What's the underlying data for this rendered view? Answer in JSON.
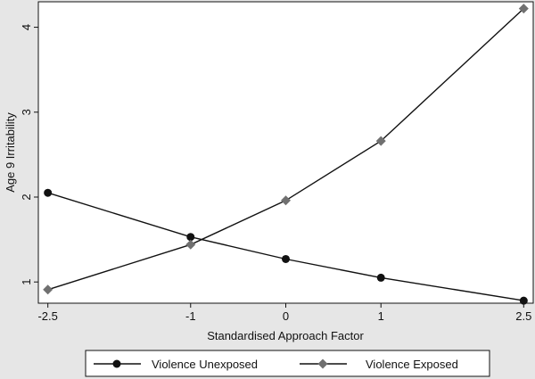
{
  "chart_data": {
    "type": "line",
    "x": [
      -2.5,
      -1,
      0,
      1,
      2.5
    ],
    "xticks": [
      "-2.5",
      "-1",
      "0",
      "1",
      "2.5"
    ],
    "yticks": [
      "1",
      "2",
      "3",
      "4"
    ],
    "xlabel": "Standardised Approach Factor",
    "ylabel": "Age 9 Irritability",
    "xlim": [
      -2.6,
      2.6
    ],
    "ylim": [
      0.75,
      4.3
    ],
    "grid": false,
    "legend_position": "bottom",
    "series": [
      {
        "name": "Violence Unexposed",
        "marker": "circle",
        "values": [
          2.05,
          1.53,
          1.27,
          1.05,
          0.78
        ]
      },
      {
        "name": "Violence Exposed",
        "marker": "diamond",
        "values": [
          0.91,
          1.44,
          1.96,
          2.66,
          4.22
        ]
      }
    ],
    "colors": {
      "background": "#e6e6e6",
      "plot_background": "#ffffff",
      "unexposed": "#111111",
      "exposed": "#707070",
      "line": "#111111"
    }
  }
}
